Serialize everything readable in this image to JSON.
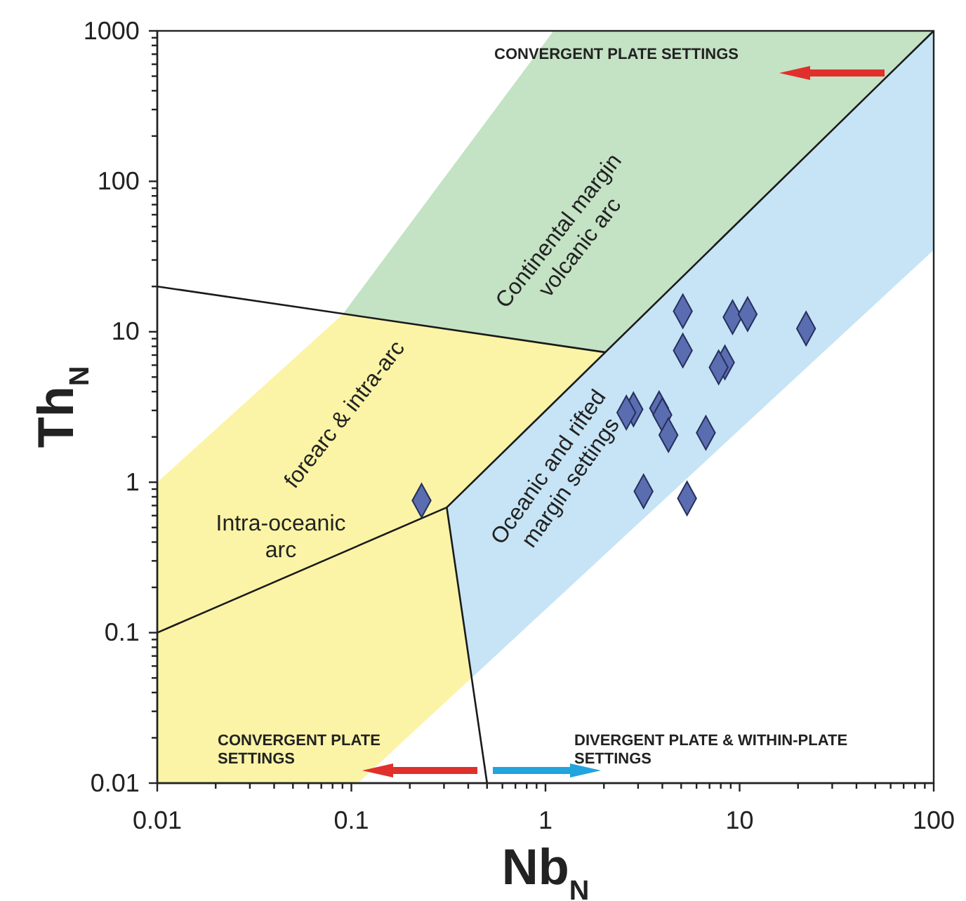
{
  "chart_data": {
    "type": "scatter",
    "xlabel": "Nb$_{N}$",
    "ylabel": "Th$_{N}$",
    "xlim": [
      0.01,
      100
    ],
    "ylim": [
      0.01,
      1000
    ],
    "xticks": [
      0.01,
      {
        "value": 0.02,
        "label": null
      },
      {
        "value": 0.03,
        "label": null
      },
      {
        "value": 0.04,
        "label": null
      },
      {
        "value": 0.05,
        "label": null
      },
      {
        "value": 0.06,
        "label": null
      },
      {
        "value": 0.07,
        "label": null
      },
      {
        "value": 0.08,
        "label": null
      },
      {
        "value": 0.09,
        "label": null
      },
      0.1,
      {
        "value": 0.2,
        "label": null
      },
      {
        "value": 0.3,
        "label": null
      },
      {
        "value": 0.4,
        "label": null
      },
      {
        "value": 0.5,
        "label": null
      },
      {
        "value": 0.6,
        "label": null
      },
      {
        "value": 0.7,
        "label": null
      },
      {
        "value": 0.8,
        "label": null
      },
      {
        "value": 0.9,
        "label": null
      },
      1,
      {
        "value": 2,
        "label": null
      },
      {
        "value": 3,
        "label": null
      },
      {
        "value": 4,
        "label": null
      },
      {
        "value": 5,
        "label": null
      },
      {
        "value": 6,
        "label": null
      },
      {
        "value": 7,
        "label": null
      },
      {
        "value": 8,
        "label": null
      },
      {
        "value": 9,
        "label": null
      },
      10,
      {
        "value": 20,
        "label": null
      },
      {
        "value": 30,
        "label": null
      },
      {
        "value": 40,
        "label": null
      },
      {
        "value": 50,
        "label": null
      },
      {
        "value": 60,
        "label": null
      },
      {
        "value": 70,
        "label": null
      },
      {
        "value": 80,
        "label": null
      },
      {
        "value": 90,
        "label": null
      },
      100
    ],
    "yticks": [
      0.01,
      {
        "value": 0.02,
        "label": null
      },
      {
        "value": 0.03,
        "label": null
      },
      {
        "value": 0.04,
        "label": null
      },
      {
        "value": 0.05,
        "label": null
      },
      {
        "value": 0.06,
        "label": null
      },
      {
        "value": 0.07,
        "label": null
      },
      {
        "value": 0.08,
        "label": null
      },
      {
        "value": 0.09,
        "label": null
      },
      0.1,
      {
        "value": 0.2,
        "label": null
      },
      {
        "value": 0.3,
        "label": null
      },
      {
        "value": 0.4,
        "label": null
      },
      {
        "value": 0.5,
        "label": null
      },
      {
        "value": 0.6,
        "label": null
      },
      {
        "value": 0.7,
        "label": null
      },
      {
        "value": 0.8,
        "label": null
      },
      {
        "value": 0.9,
        "label": null
      },
      1,
      {
        "value": 2,
        "label": null
      },
      {
        "value": 3,
        "label": null
      },
      {
        "value": 4,
        "label": null
      },
      {
        "value": 5,
        "label": null
      },
      {
        "value": 6,
        "label": null
      },
      {
        "value": 7,
        "label": null
      },
      {
        "value": 8,
        "label": null
      },
      {
        "value": 9,
        "label": null
      },
      10,
      {
        "value": 20,
        "label": null
      },
      {
        "value": 30,
        "label": null
      },
      {
        "value": 40,
        "label": null
      },
      {
        "value": 50,
        "label": null
      },
      {
        "value": 60,
        "label": null
      },
      {
        "value": 70,
        "label": null
      },
      {
        "value": 80,
        "label": null
      },
      {
        "value": 90,
        "label": null
      },
      100,
      {
        "value": 200,
        "label": null
      },
      {
        "value": 300,
        "label": null
      },
      {
        "value": 400,
        "label": null
      },
      {
        "value": 500,
        "label": null
      },
      {
        "value": 600,
        "label": null
      },
      {
        "value": 700,
        "label": null
      },
      {
        "value": 800,
        "label": null
      },
      {
        "value": 900,
        "label": null
      },
      1000
    ],
    "log": "xy",
    "series": [
      {
        "type": "line",
        "color": "#1a1a1a",
        "x": [
          0.01,
          2.04
        ],
        "values": [
          20,
          7.3
        ]
      },
      {
        "type": "line",
        "color": "#1a1a1a",
        "x": [
          0.01,
          0.31,
          100
        ],
        "values": [
          0.1,
          0.68,
          1000
        ]
      },
      {
        "type": "line",
        "color": "#1a1a1a",
        "x": [
          0.31,
          0.5
        ],
        "values": [
          0.68,
          0.01
        ]
      },
      {
        "color": "#5a6db0",
        "marker": "diamond",
        "x": [
          5.1,
          9.2,
          11,
          22,
          5.1,
          8.4,
          7.8,
          2.84,
          2.61,
          3.85,
          4,
          4.3,
          6.7,
          3.2,
          5.36,
          0.23
        ],
        "values": [
          13.7,
          12.5,
          13.1,
          10.5,
          7.5,
          6.25,
          5.8,
          3.05,
          2.9,
          3.1,
          2.8,
          2.06,
          2.13,
          0.87,
          0.78,
          0.755
        ]
      }
    ],
    "annotations": [
      "CONVERGENT PLATE SETTINGS",
      "Continental margin volcanic arc",
      "forearc & intra-arc",
      "Intra-oceanic arc",
      "Oceanic and rifted margin settings",
      "CONVERGENT PLATE SETTINGS",
      "DIVERGENT PLATE & WITHIN-PLATE SETTINGS"
    ]
  }
}
